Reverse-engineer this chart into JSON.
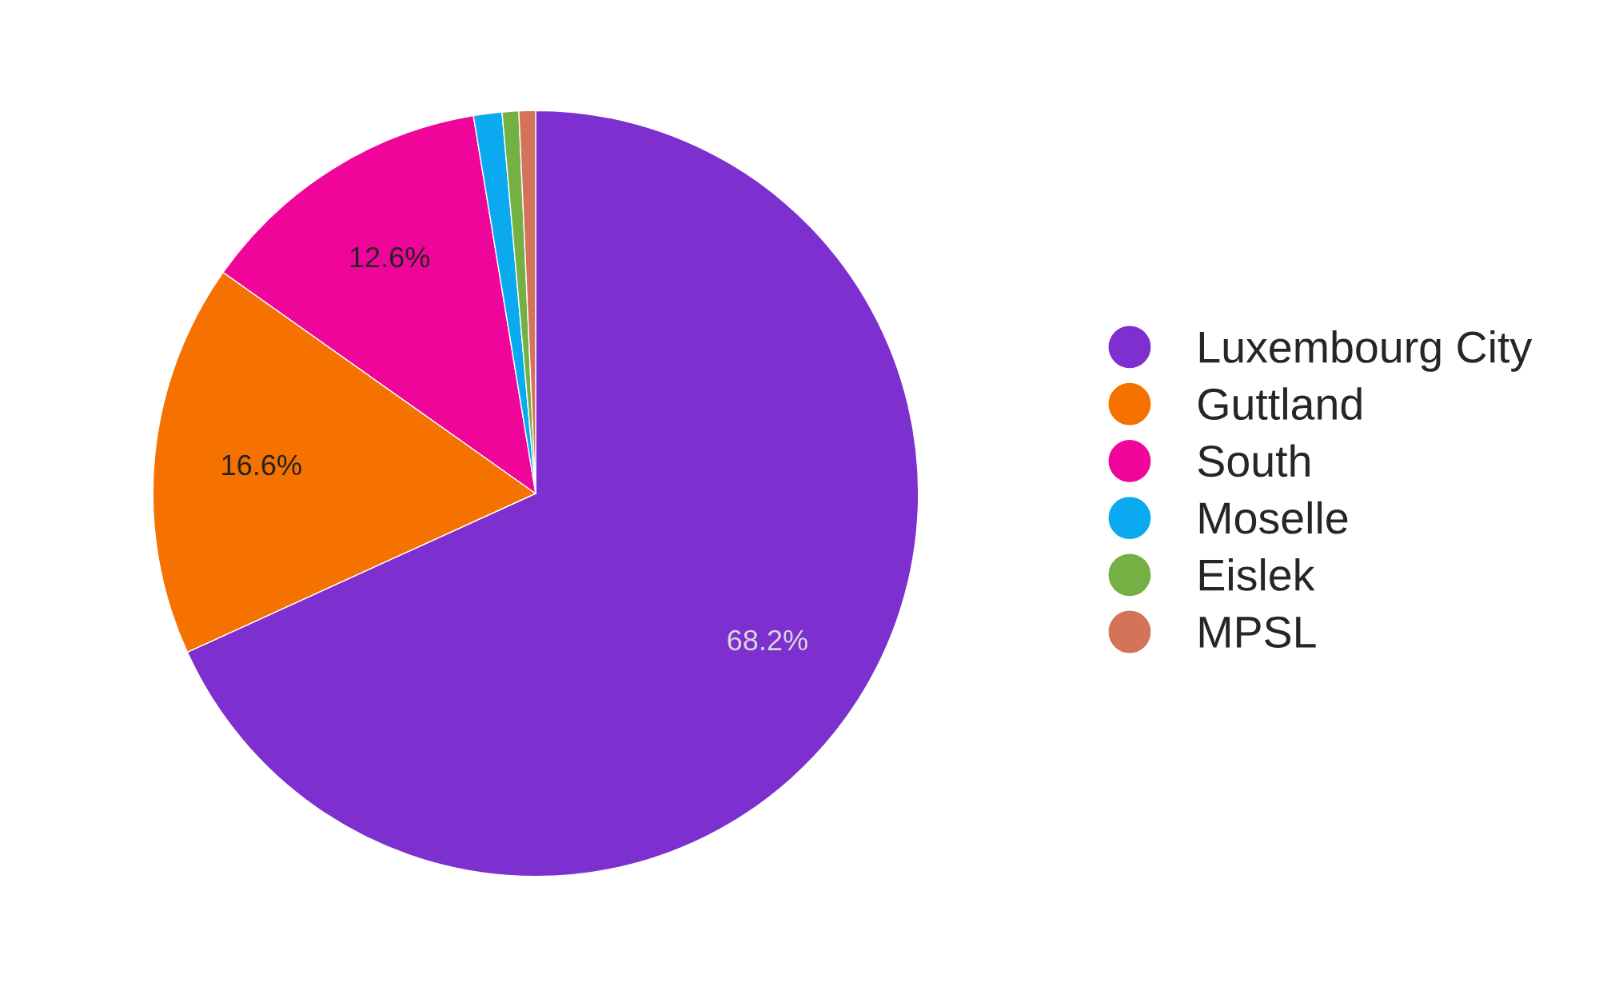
{
  "chart_data": {
    "type": "pie",
    "categories": [
      "Luxembourg City",
      "Guttland",
      "South",
      "Moselle",
      "Eislek",
      "MPSL"
    ],
    "values": [
      68.2,
      16.6,
      12.6,
      1.2,
      0.7,
      0.7
    ],
    "colors": [
      "#7e2fcf",
      "#f57200",
      "#f0059b",
      "#0aa9f0",
      "#74b043",
      "#d4735a"
    ],
    "value_labels": [
      "68.2%",
      "16.6%",
      "12.6%",
      null,
      null,
      null
    ],
    "legend": "right"
  }
}
